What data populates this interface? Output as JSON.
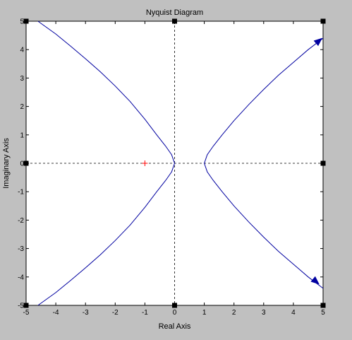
{
  "chart_data": {
    "type": "line",
    "title": "Nyquist Diagram",
    "xlabel": "Real Axis",
    "ylabel": "Imaginary Axis",
    "xlim": [
      -5,
      5
    ],
    "ylim": [
      -5,
      5
    ],
    "xticks": [
      -5,
      -4,
      -3,
      -2,
      -1,
      0,
      1,
      2,
      3,
      4,
      5
    ],
    "yticks": [
      -5,
      -4,
      -3,
      -2,
      -1,
      0,
      1,
      2,
      3,
      4,
      5
    ],
    "grid": false,
    "zero_lines": true,
    "critical_point": {
      "x": -1,
      "y": 0,
      "marker": "+",
      "color": "#ff0000"
    },
    "series": [
      {
        "color": "#0000a0",
        "x": [
          -4.6,
          -4.0,
          -3.5,
          -3.0,
          -2.5,
          -2.0,
          -1.5,
          -1.0,
          -0.6,
          -0.3,
          -0.1,
          0.0,
          -0.1,
          -0.3,
          -0.6,
          -1.0,
          -1.5,
          -2.0,
          -2.5,
          -3.0,
          -3.5,
          -4.0,
          -4.6
        ],
        "y": [
          5.0,
          4.55,
          4.12,
          3.68,
          3.22,
          2.72,
          2.18,
          1.55,
          1.0,
          0.6,
          0.3,
          0.0,
          -0.3,
          -0.6,
          -1.0,
          -1.55,
          -2.18,
          -2.72,
          -3.22,
          -3.68,
          -4.12,
          -4.55,
          -5.0
        ]
      },
      {
        "color": "#0000a0",
        "x": [
          5.0,
          4.5,
          4.0,
          3.5,
          3.0,
          2.5,
          2.0,
          1.6,
          1.3,
          1.1,
          1.0,
          1.1,
          1.3,
          1.6,
          2.0,
          2.5,
          3.0,
          3.5,
          4.0,
          4.5,
          5.0
        ],
        "y": [
          4.4,
          4.0,
          3.55,
          3.1,
          2.6,
          2.07,
          1.5,
          1.0,
          0.6,
          0.3,
          0.0,
          -0.3,
          -0.6,
          -1.0,
          -1.5,
          -2.07,
          -2.6,
          -3.1,
          -3.55,
          -4.0,
          -4.4
        ],
        "arrows": [
          {
            "x": 4.85,
            "y": 4.3,
            "direction": "up-right"
          },
          {
            "x": 4.75,
            "y": -4.15,
            "direction": "down-right"
          }
        ]
      }
    ]
  }
}
